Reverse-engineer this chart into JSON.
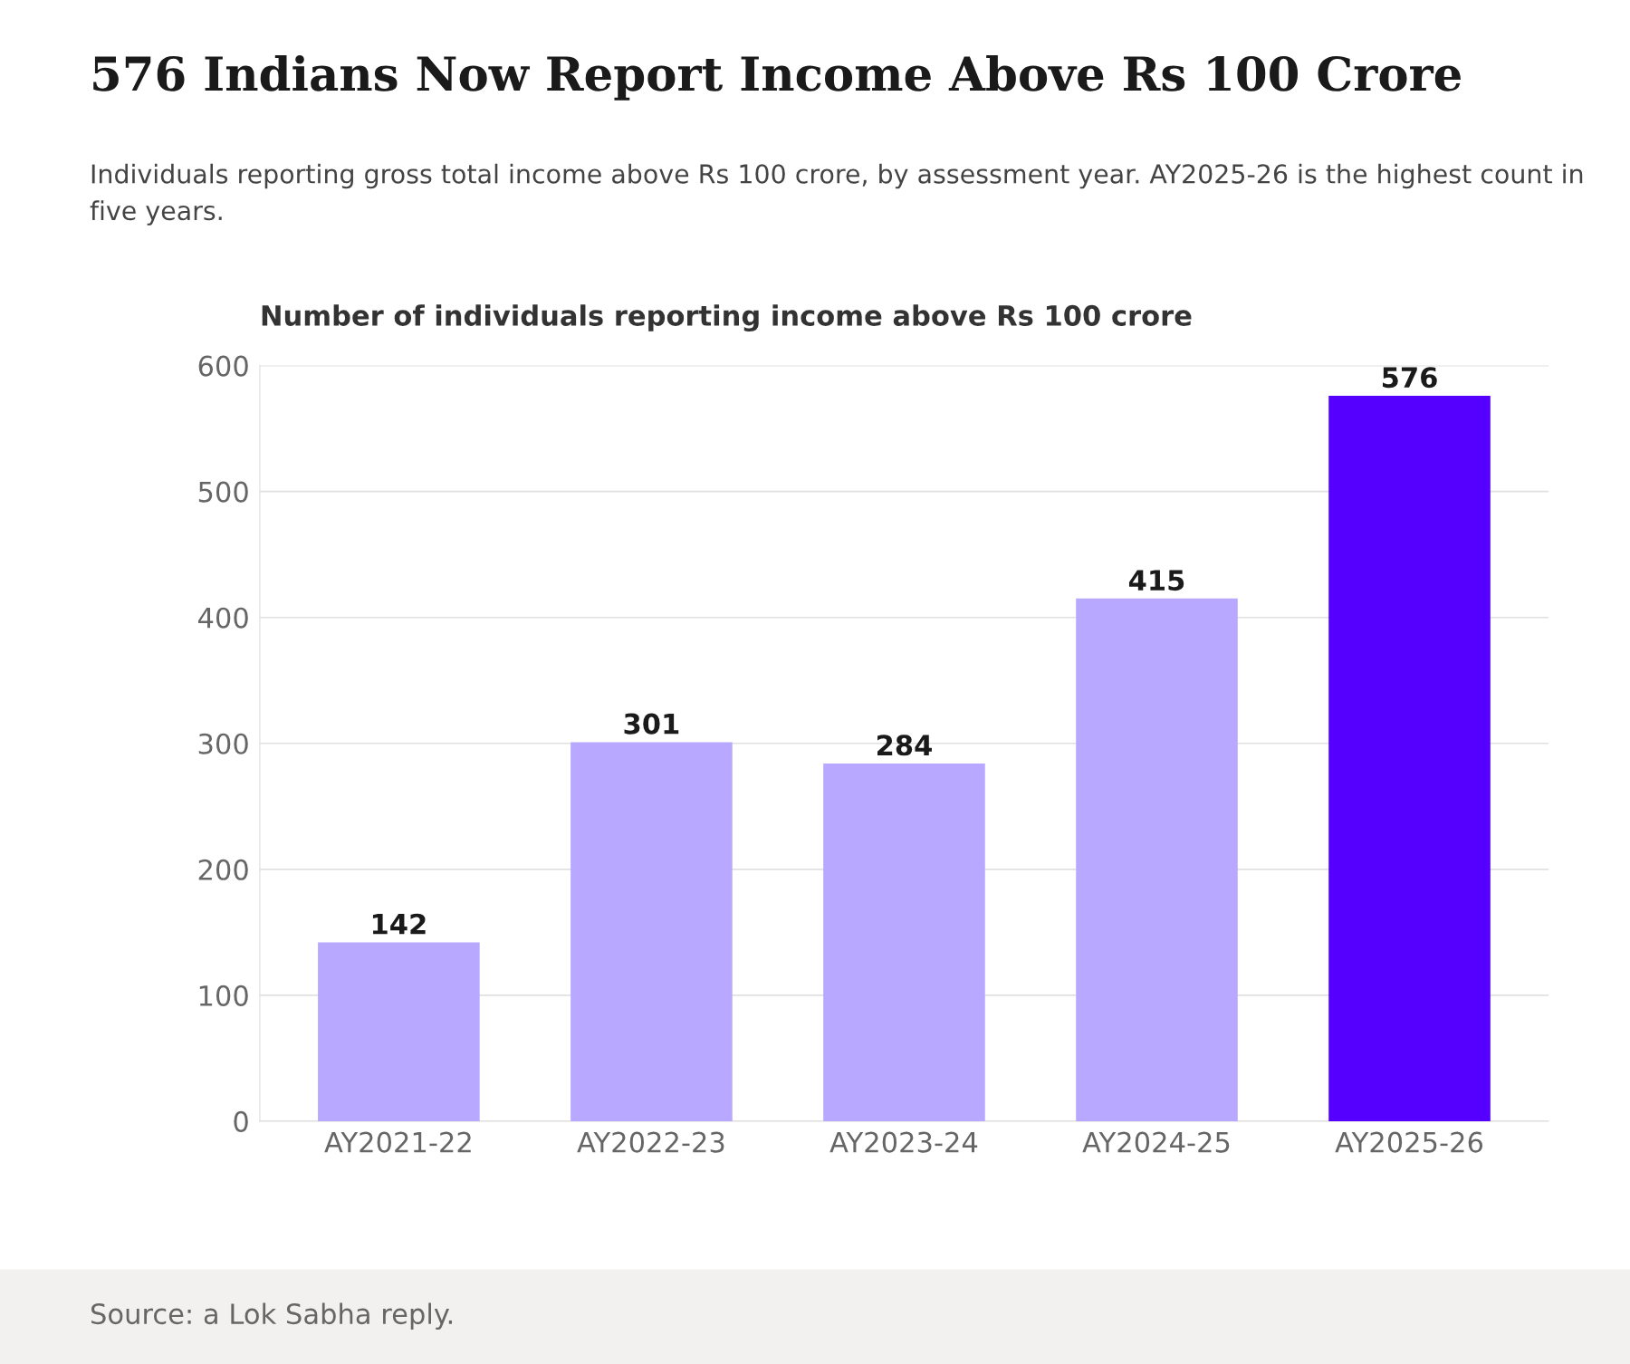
{
  "chart_data": {
    "type": "bar",
    "title": "576 Indians Now Report Income Above Rs 100 Crore",
    "subtitle": "Individuals reporting gross total income above Rs 100 crore, by assessment year. AY2025-26 is the highest count in five years.",
    "ylabel": "Number of individuals reporting income above Rs 100 crore",
    "categories": [
      "AY2021-22",
      "AY2022-23",
      "AY2023-24",
      "AY2024-25",
      "AY2025-26"
    ],
    "values": [
      142,
      301,
      284,
      415,
      576
    ],
    "colors": [
      "#b8a8ff",
      "#b8a8ff",
      "#b8a8ff",
      "#b8a8ff",
      "#5500ff"
    ],
    "ylim": [
      0,
      600
    ],
    "yticks": [
      0,
      100,
      200,
      300,
      400,
      500,
      600
    ],
    "grid": "y",
    "data_labels": true,
    "annotations": [
      "Source: a Lok Sabha reply."
    ]
  }
}
